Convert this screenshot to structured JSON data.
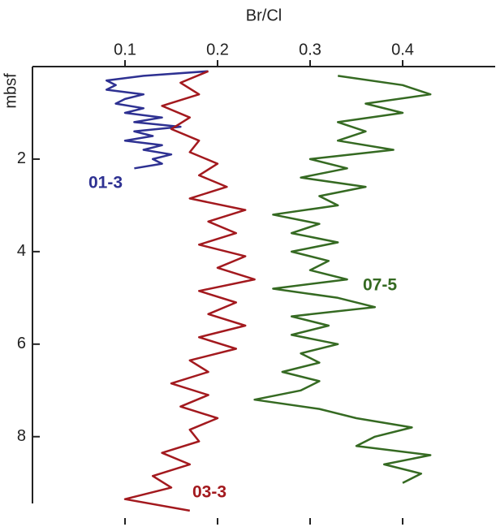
{
  "chart_data": {
    "type": "depth-profile",
    "xlabel": "Br/Cl",
    "ylabel": "mbsf",
    "xlim": [
      0,
      0.5
    ],
    "xticks": [
      0.1,
      0.2,
      0.3,
      0.4
    ],
    "ylim": [
      0,
      9.9
    ],
    "yticks": [
      2,
      4,
      6,
      8
    ],
    "y_inverted": true,
    "series": [
      {
        "name": "01-3",
        "color": "#2e3192",
        "depths": [
          0.1,
          0.2,
          0.3,
          0.4,
          0.5,
          0.6,
          0.7,
          0.8,
          0.9,
          1.0,
          1.1,
          1.2,
          1.3,
          1.4,
          1.5,
          1.6,
          1.7,
          1.8,
          1.9,
          2.0,
          2.1,
          2.2
        ],
        "values": [
          0.19,
          0.12,
          0.08,
          0.09,
          0.08,
          0.12,
          0.1,
          0.09,
          0.12,
          0.1,
          0.14,
          0.11,
          0.16,
          0.11,
          0.13,
          0.1,
          0.14,
          0.12,
          0.15,
          0.13,
          0.14,
          0.11
        ]
      },
      {
        "name": "03-3",
        "color": "#a3191e",
        "depths": [
          0.1,
          0.35,
          0.6,
          0.85,
          1.1,
          1.35,
          1.6,
          1.85,
          2.1,
          2.35,
          2.6,
          2.85,
          3.1,
          3.35,
          3.6,
          3.85,
          4.1,
          4.35,
          4.6,
          4.85,
          5.1,
          5.35,
          5.6,
          5.85,
          6.1,
          6.35,
          6.6,
          6.85,
          7.1,
          7.35,
          7.6,
          7.85,
          8.1,
          8.35,
          8.6,
          8.85,
          9.1,
          9.35,
          9.6
        ],
        "values": [
          0.19,
          0.16,
          0.18,
          0.14,
          0.17,
          0.15,
          0.18,
          0.17,
          0.2,
          0.18,
          0.21,
          0.17,
          0.23,
          0.19,
          0.22,
          0.18,
          0.23,
          0.2,
          0.24,
          0.18,
          0.22,
          0.19,
          0.23,
          0.18,
          0.22,
          0.17,
          0.19,
          0.15,
          0.19,
          0.16,
          0.2,
          0.17,
          0.18,
          0.14,
          0.17,
          0.13,
          0.15,
          0.1,
          0.17
        ]
      },
      {
        "name": "07-5",
        "color": "#356a22",
        "depths": [
          0.2,
          0.4,
          0.6,
          0.8,
          1.0,
          1.2,
          1.4,
          1.6,
          1.8,
          2.0,
          2.2,
          2.4,
          2.6,
          2.8,
          3.0,
          3.2,
          3.4,
          3.6,
          3.8,
          4.0,
          4.2,
          4.4,
          4.6,
          4.8,
          5.0,
          5.2,
          5.4,
          5.6,
          5.8,
          6.0,
          6.2,
          6.4,
          6.6,
          6.8,
          7.0,
          7.2,
          7.4,
          7.6,
          7.8,
          8.0,
          8.2,
          8.4,
          8.6,
          8.8,
          9.0
        ],
        "values": [
          0.33,
          0.4,
          0.43,
          0.36,
          0.4,
          0.33,
          0.36,
          0.33,
          0.39,
          0.3,
          0.34,
          0.29,
          0.36,
          0.31,
          0.33,
          0.26,
          0.31,
          0.28,
          0.33,
          0.28,
          0.32,
          0.3,
          0.34,
          0.26,
          0.33,
          0.37,
          0.28,
          0.32,
          0.28,
          0.33,
          0.29,
          0.31,
          0.27,
          0.31,
          0.29,
          0.24,
          0.31,
          0.35,
          0.41,
          0.37,
          0.35,
          0.43,
          0.38,
          0.42,
          0.4
        ]
      }
    ]
  }
}
